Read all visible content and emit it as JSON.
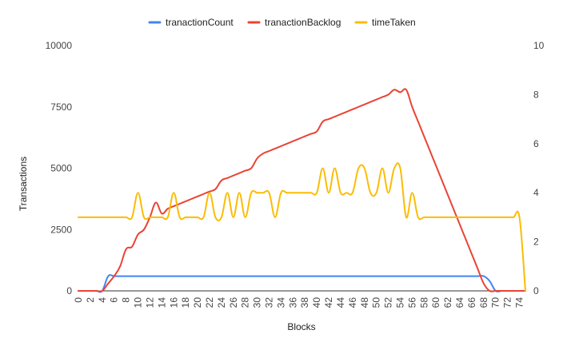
{
  "chart_data": {
    "type": "line",
    "title": "",
    "xlabel": "Blocks",
    "ylabel": "Transactions",
    "y2label": "",
    "ylim": [
      0,
      10000
    ],
    "y2lim": [
      0,
      10
    ],
    "yticks": [
      "0",
      "2500",
      "5000",
      "7500",
      "10000"
    ],
    "y2ticks": [
      "0",
      "2",
      "4",
      "6",
      "8",
      "10"
    ],
    "x": [
      0,
      1,
      2,
      3,
      4,
      5,
      6,
      7,
      8,
      9,
      10,
      11,
      12,
      13,
      14,
      15,
      16,
      17,
      18,
      19,
      20,
      21,
      22,
      23,
      24,
      25,
      26,
      27,
      28,
      29,
      30,
      31,
      32,
      33,
      34,
      35,
      36,
      37,
      38,
      39,
      40,
      41,
      42,
      43,
      44,
      45,
      46,
      47,
      48,
      49,
      50,
      51,
      52,
      53,
      54,
      55,
      56,
      57,
      58,
      59,
      60,
      61,
      62,
      63,
      64,
      65,
      66,
      67,
      68,
      69,
      70,
      71,
      72,
      73,
      74,
      75
    ],
    "xticks": [
      "0",
      "2",
      "4",
      "6",
      "8",
      "10",
      "12",
      "14",
      "16",
      "18",
      "20",
      "22",
      "24",
      "26",
      "28",
      "30",
      "32",
      "34",
      "36",
      "38",
      "40",
      "42",
      "44",
      "46",
      "48",
      "50",
      "52",
      "54",
      "56",
      "58",
      "60",
      "62",
      "64",
      "66",
      "68",
      "70",
      "72",
      "74"
    ],
    "grid": false,
    "legend_position": "top",
    "series": [
      {
        "name": "tranactionCount",
        "color": "#4285f4",
        "axis": "left",
        "values": [
          0,
          0,
          0,
          0,
          0,
          600,
          600,
          600,
          600,
          600,
          600,
          600,
          600,
          600,
          600,
          600,
          600,
          600,
          600,
          600,
          600,
          600,
          600,
          600,
          600,
          600,
          600,
          600,
          600,
          600,
          600,
          600,
          600,
          600,
          600,
          600,
          600,
          600,
          600,
          600,
          600,
          600,
          600,
          600,
          600,
          600,
          600,
          600,
          600,
          600,
          600,
          600,
          600,
          600,
          600,
          600,
          600,
          600,
          600,
          600,
          600,
          600,
          600,
          600,
          600,
          600,
          600,
          600,
          600,
          400,
          0,
          0,
          0,
          0,
          0,
          0
        ]
      },
      {
        "name": "tranactionBacklog",
        "color": "#ea4335",
        "axis": "left",
        "values": [
          0,
          0,
          0,
          0,
          0,
          300,
          600,
          1000,
          1700,
          1800,
          2300,
          2500,
          3000,
          3600,
          3150,
          3350,
          3450,
          3550,
          3650,
          3750,
          3850,
          3950,
          4050,
          4150,
          4500,
          4600,
          4700,
          4800,
          4900,
          5000,
          5400,
          5600,
          5700,
          5800,
          5900,
          6000,
          6100,
          6200,
          6300,
          6400,
          6500,
          6900,
          7000,
          7100,
          7200,
          7300,
          7400,
          7500,
          7600,
          7700,
          7800,
          7900,
          8000,
          8200,
          8100,
          8200,
          7500,
          6900,
          6300,
          5700,
          5100,
          4500,
          3900,
          3300,
          2700,
          2100,
          1500,
          900,
          300,
          0,
          0,
          0,
          0,
          0,
          0,
          0
        ]
      },
      {
        "name": "timeTaken",
        "color": "#fbbc04",
        "axis": "right",
        "values": [
          3,
          3,
          3,
          3,
          3,
          3,
          3,
          3,
          3,
          3,
          4,
          3,
          3,
          3,
          3,
          3,
          4,
          3,
          3,
          3,
          3,
          3,
          4,
          3,
          3,
          4,
          3,
          4,
          3,
          4,
          4,
          4,
          4,
          3,
          4,
          4,
          4,
          4,
          4,
          4,
          4,
          5,
          4,
          5,
          4,
          4,
          4,
          5,
          5,
          4,
          4,
          5,
          4,
          5,
          5,
          3,
          4,
          3,
          3,
          3,
          3,
          3,
          3,
          3,
          3,
          3,
          3,
          3,
          3,
          3,
          3,
          3,
          3,
          3,
          3,
          0
        ]
      }
    ]
  }
}
